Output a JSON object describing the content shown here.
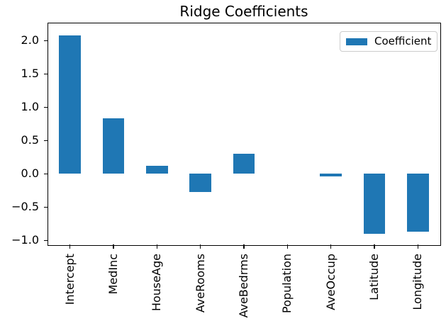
{
  "chart_data": {
    "type": "bar",
    "title": "Ridge Coefficients",
    "xlabel": "",
    "ylabel": "",
    "categories": [
      "Intercept",
      "MedInc",
      "HouseAge",
      "AveRooms",
      "AveBedrms",
      "Population",
      "AveOccup",
      "Latitude",
      "Longitude"
    ],
    "series": [
      {
        "name": "Coefficient",
        "values": [
          2.08,
          0.83,
          0.12,
          -0.27,
          0.3,
          0.0,
          -0.04,
          -0.9,
          -0.87
        ]
      }
    ],
    "ylim": [
      -1.06,
      2.26
    ],
    "yticks": [
      {
        "value": 2.0,
        "label": "2.0"
      },
      {
        "value": 1.5,
        "label": "1.5"
      },
      {
        "value": 1.0,
        "label": "1.0"
      },
      {
        "value": 0.5,
        "label": "0.5"
      },
      {
        "value": 0.0,
        "label": "0.0"
      },
      {
        "value": -0.5,
        "label": "−0.5"
      },
      {
        "value": -1.0,
        "label": "−1.0"
      }
    ],
    "x_tick_rotation": 90,
    "grid": false,
    "bar_width_fraction": 0.5,
    "legend": {
      "position": "upper right",
      "label": "Coefficient"
    },
    "colors": {
      "bar": "#1f77b4",
      "spine": "#000000",
      "text": "#000000",
      "legend_border": "#cccccc",
      "background": "#ffffff"
    }
  }
}
